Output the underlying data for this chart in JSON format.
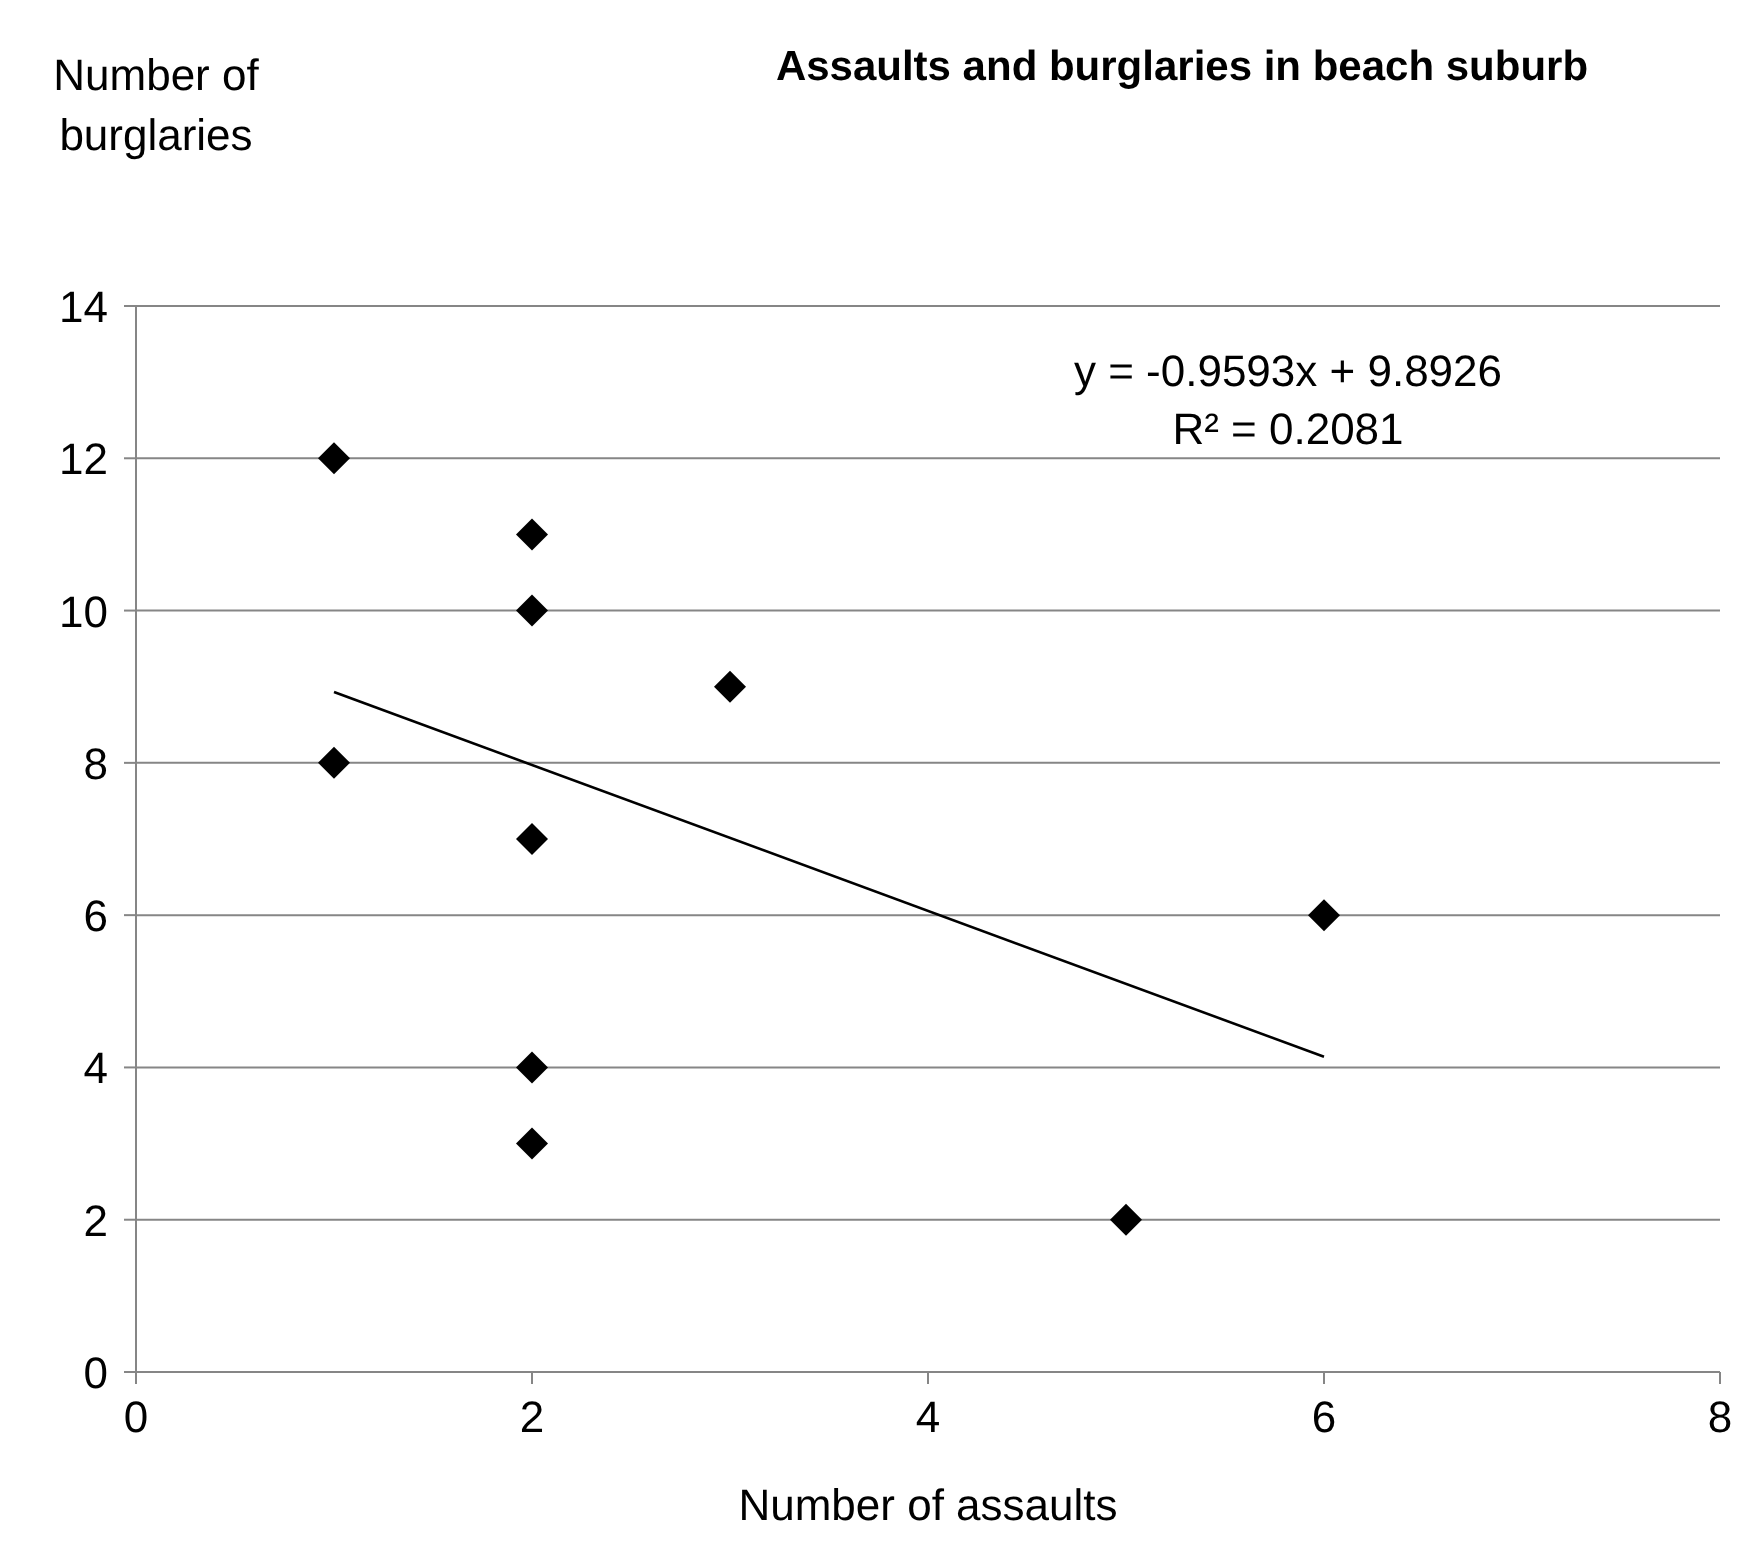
{
  "chart_data": {
    "type": "scatter",
    "title": "Assaults and burglaries in beach suburb",
    "xlabel": "Number of assaults",
    "ylabel": "Number of burglaries",
    "xlim": [
      0,
      8
    ],
    "xticks": [
      0,
      2,
      4,
      6,
      8
    ],
    "ylim": [
      0,
      14
    ],
    "yticks": [
      0,
      2,
      4,
      6,
      8,
      10,
      12,
      14
    ],
    "grid": "y",
    "marker": "diamond",
    "series": [
      {
        "color": "#000000",
        "x": [
          1,
          1,
          2,
          2,
          2,
          2,
          2,
          3,
          5,
          6
        ],
        "values": [
          12,
          8,
          11,
          10,
          7,
          4,
          3,
          9,
          2,
          6
        ]
      },
      {
        "type": "line",
        "color": "#000000",
        "marker": "none",
        "line_style": "solid",
        "x": [
          1,
          6
        ],
        "values": [
          8.93,
          4.14
        ]
      }
    ],
    "annotations": [
      "y = -0.9593x + 9.8926",
      "R² = 0.2081"
    ]
  }
}
